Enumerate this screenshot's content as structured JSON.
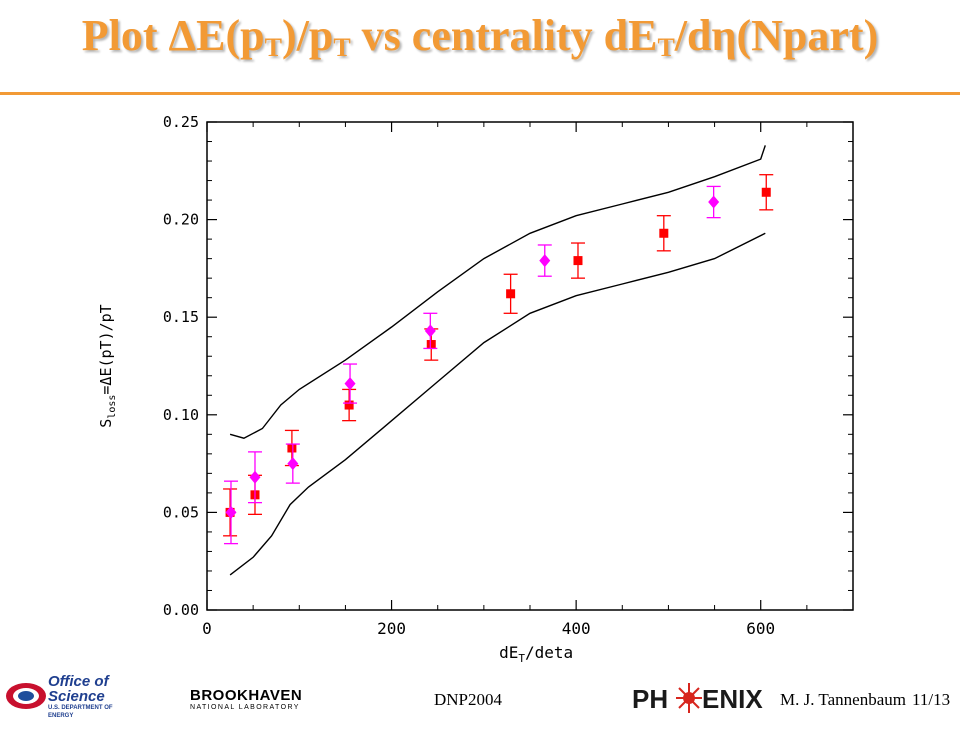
{
  "title": {
    "prefix": "Plot ",
    "delta1": "Δ",
    "e1": "E(p",
    "sub1": "T",
    "mid1": ")/p",
    "sub2": "T",
    "mid2": " vs centrality dE",
    "sub3": "T",
    "mid3": "/d",
    "eta": "η",
    "end": "(Npart)"
  },
  "chart_data": {
    "type": "scatter",
    "xlabel_main": "dE",
    "xlabel_sub": "T",
    "xlabel_rest": "/deta",
    "ylabel_main": "S",
    "ylabel_sub": "loss",
    "ylabel_rest": "=ΔE(pT)/pT",
    "xlim": [
      0,
      700
    ],
    "ylim": [
      0.0,
      0.25
    ],
    "x_ticks": [
      "0",
      "200",
      "400",
      "600"
    ],
    "x_tick_values": [
      0,
      200,
      400,
      600
    ],
    "y_ticks": [
      "0.00",
      "0.05",
      "0.10",
      "0.15",
      "0.20",
      "0.25"
    ],
    "y_tick_values": [
      0.0,
      0.05,
      0.1,
      0.15,
      0.2,
      0.25
    ],
    "series": [
      {
        "marker": "square",
        "color": "#ff0000",
        "points": [
          {
            "x": 25,
            "y": 0.05,
            "err": 0.012
          },
          {
            "x": 52,
            "y": 0.059,
            "err": 0.01
          },
          {
            "x": 92,
            "y": 0.083,
            "err": 0.009
          },
          {
            "x": 154,
            "y": 0.105,
            "err": 0.008
          },
          {
            "x": 243,
            "y": 0.136,
            "err": 0.008
          },
          {
            "x": 329,
            "y": 0.162,
            "err": 0.01
          },
          {
            "x": 402,
            "y": 0.179,
            "err": 0.009
          },
          {
            "x": 495,
            "y": 0.193,
            "err": 0.009
          },
          {
            "x": 606,
            "y": 0.214,
            "err": 0.009
          }
        ]
      },
      {
        "marker": "diamond",
        "color": "#ff00ff",
        "points": [
          {
            "x": 26,
            "y": 0.05,
            "err": 0.016
          },
          {
            "x": 52,
            "y": 0.068,
            "err": 0.013
          },
          {
            "x": 93,
            "y": 0.075,
            "err": 0.01
          },
          {
            "x": 155,
            "y": 0.116,
            "err": 0.01
          },
          {
            "x": 242,
            "y": 0.143,
            "err": 0.009
          },
          {
            "x": 366,
            "y": 0.179,
            "err": 0.008
          },
          {
            "x": 549,
            "y": 0.209,
            "err": 0.008
          }
        ]
      }
    ],
    "band_upper": [
      [
        25,
        0.09
      ],
      [
        40,
        0.088
      ],
      [
        60,
        0.093
      ],
      [
        80,
        0.105
      ],
      [
        100,
        0.113
      ],
      [
        150,
        0.128
      ],
      [
        200,
        0.145
      ],
      [
        250,
        0.163
      ],
      [
        300,
        0.18
      ],
      [
        350,
        0.193
      ],
      [
        400,
        0.202
      ],
      [
        450,
        0.208
      ],
      [
        500,
        0.214
      ],
      [
        550,
        0.222
      ],
      [
        600,
        0.231
      ],
      [
        605,
        0.238
      ]
    ],
    "band_lower": [
      [
        25,
        0.018
      ],
      [
        50,
        0.027
      ],
      [
        70,
        0.038
      ],
      [
        90,
        0.054
      ],
      [
        110,
        0.063
      ],
      [
        150,
        0.077
      ],
      [
        200,
        0.097
      ],
      [
        250,
        0.117
      ],
      [
        300,
        0.137
      ],
      [
        350,
        0.152
      ],
      [
        400,
        0.161
      ],
      [
        450,
        0.167
      ],
      [
        500,
        0.173
      ],
      [
        550,
        0.18
      ],
      [
        605,
        0.193
      ]
    ],
    "grid": false
  },
  "footer": {
    "office_line1": "Office of",
    "office_line2": "Science",
    "office_line3": "U.S. DEPARTMENT OF ENERGY",
    "brookhaven_line1": "BROOKHAVEN",
    "brookhaven_line2": "NATIONAL LABORATORY",
    "conference": "DNP2004",
    "phenix_a": "PH",
    "phenix_b": "ENIX",
    "author": "M. J. Tannenbaum",
    "page": "11/13"
  },
  "colors": {
    "title": "#f29a35",
    "square": "#ff0000",
    "diamond": "#ff00ff"
  }
}
